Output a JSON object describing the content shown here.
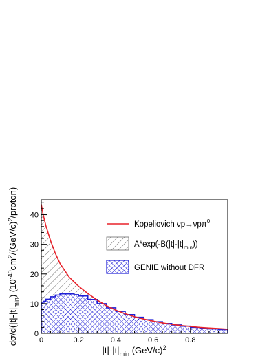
{
  "chart_data": {
    "type": "area",
    "xlabel": "|t|-|t|min (GeV/c)2",
    "ylabel": "dσ/d(|t|-|t|min) (10-40cm2/(GeV/c)2/proton)",
    "xlim": [
      0,
      1.0
    ],
    "ylim": [
      0,
      45
    ],
    "x_ticks": [
      0,
      0.2,
      0.4,
      0.6,
      0.8
    ],
    "x_tick_labels": [
      "0",
      "0.2",
      "0.4",
      "0.6",
      "0.8"
    ],
    "y_ticks": [
      0,
      10,
      20,
      30,
      40
    ],
    "y_tick_labels": [
      "0",
      "10",
      "20",
      "30",
      "40"
    ],
    "grid": false,
    "legend_placement": "top-right",
    "legend": [
      {
        "label": "Kopeliovich νp→νpπ0",
        "style": "red-line"
      },
      {
        "label": "A*exp(-B(|t|-|t|min))",
        "style": "grey-hatch"
      },
      {
        "label": "GENIE without DFR",
        "style": "blue-crosshatch"
      }
    ],
    "series": [
      {
        "name": "Kopeliovich νp→νpπ0",
        "kind": "line",
        "color": "#e8222a",
        "x": [
          0.0,
          0.01,
          0.025,
          0.05,
          0.075,
          0.1,
          0.15,
          0.2,
          0.25,
          0.3,
          0.35,
          0.4,
          0.45,
          0.5,
          0.55,
          0.6,
          0.65,
          0.7,
          0.75,
          0.8,
          0.85,
          0.9,
          0.95,
          1.0
        ],
        "values": [
          43.5,
          40.0,
          36.2,
          31.2,
          27.0,
          23.6,
          18.9,
          15.9,
          13.4,
          11.2,
          9.3,
          7.8,
          6.6,
          5.6,
          4.8,
          4.1,
          3.5,
          3.0,
          2.6,
          2.3,
          2.0,
          1.8,
          1.6,
          1.4
        ]
      },
      {
        "name": "A*exp(-B(|t|-|t|min))",
        "kind": "hatched-area",
        "color": "#555555",
        "x": [
          0.0,
          0.01,
          0.025,
          0.05,
          0.075,
          0.1,
          0.15,
          0.2,
          0.25,
          0.3,
          0.35,
          0.4,
          0.45,
          0.5,
          0.55,
          0.6,
          0.65,
          0.7,
          0.75,
          0.8,
          0.85,
          0.9,
          0.95,
          1.0
        ],
        "values": [
          43.5,
          40.0,
          36.2,
          31.2,
          27.0,
          23.6,
          18.9,
          15.9,
          13.4,
          11.2,
          9.3,
          7.8,
          6.6,
          5.6,
          4.8,
          4.1,
          3.5,
          3.0,
          2.6,
          2.3,
          2.0,
          1.8,
          1.6,
          1.4
        ]
      },
      {
        "name": "GENIE without DFR",
        "kind": "crosshatched-step",
        "color": "#1f1fd6",
        "x": [
          0.0,
          0.01,
          0.025,
          0.05,
          0.075,
          0.1,
          0.125,
          0.15,
          0.175,
          0.2,
          0.25,
          0.3,
          0.35,
          0.4,
          0.45,
          0.5,
          0.55,
          0.6,
          0.65,
          0.7,
          0.75,
          0.8,
          0.85,
          0.9,
          0.95,
          1.0
        ],
        "values": [
          10.2,
          10.8,
          11.5,
          12.3,
          12.9,
          13.3,
          13.3,
          13.3,
          13.0,
          12.6,
          11.4,
          10.0,
          8.6,
          7.4,
          6.3,
          5.4,
          4.6,
          3.9,
          3.3,
          2.8,
          2.4,
          2.0,
          1.7,
          1.5,
          1.3,
          1.1
        ]
      }
    ]
  }
}
